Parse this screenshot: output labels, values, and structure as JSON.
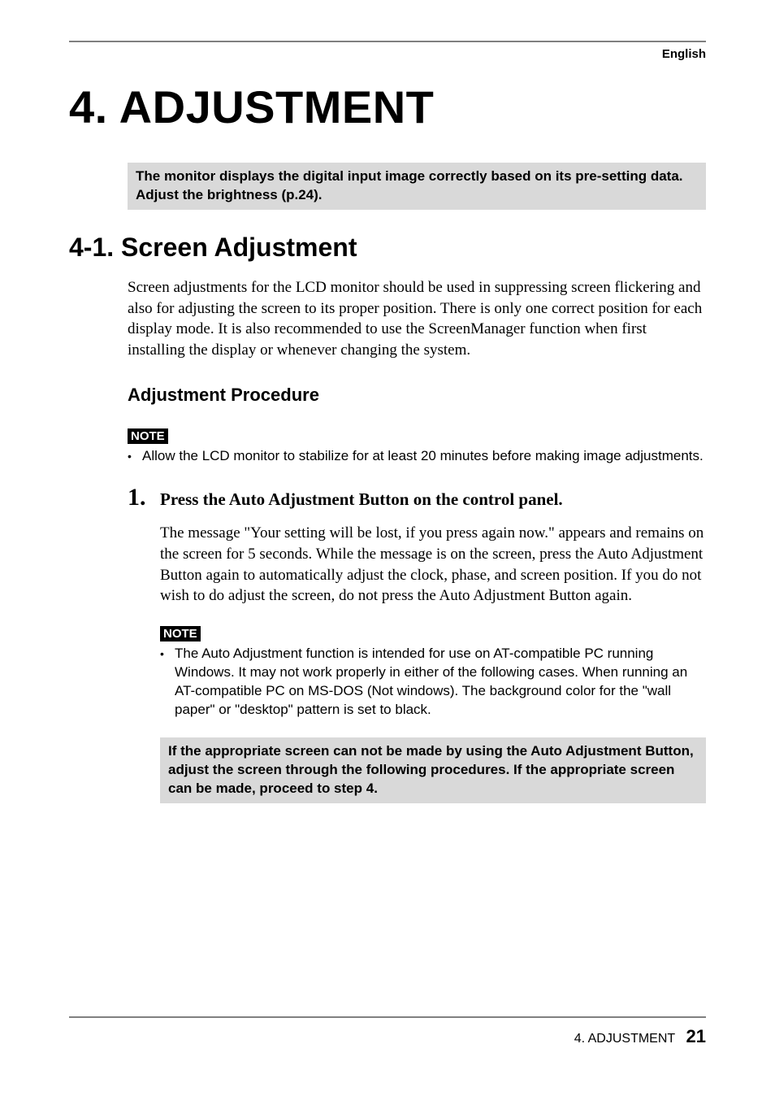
{
  "header": {
    "language": "English"
  },
  "title": "4. ADJUSTMENT",
  "intro_callout": "The monitor displays the digital input image correctly based on its pre-setting data.  Adjust the brightness (p.24).",
  "section": {
    "heading": "4-1. Screen Adjustment",
    "body": "Screen adjustments for the LCD monitor should be used in suppressing screen flickering and also for adjusting the screen to its proper position. There is only one correct position for each display mode. It is also recommended to use the ScreenManager function when first installing the display or whenever changing the system."
  },
  "procedure": {
    "heading": "Adjustment Procedure",
    "note1": {
      "label": "NOTE",
      "bullet": "Allow the LCD monitor to stabilize for at least 20 minutes before making image adjustments."
    },
    "step1": {
      "num": "1.",
      "title": "Press the Auto Adjustment Button on the control panel.",
      "body": "The message \"Your setting will be lost, if you press again now.\" appears and remains on the screen for 5 seconds.  While the message is on the screen, press the Auto Adjustment Button again to automatically adjust the clock, phase, and screen position.  If you do not wish to do adjust the screen, do not press the Auto Adjustment Button again.",
      "note": {
        "label": "NOTE",
        "bullet": "The Auto Adjustment function is intended for use on AT-compatible PC running Windows.  It may not work properly in either of the following cases. When running an AT-compatible PC on MS-DOS (Not windows).  The background color for the \"wall paper\" or \"desktop\" pattern is set to black."
      },
      "post_callout": "If the appropriate screen can not be made by using the Auto Adjustment Button, adjust the screen through the following procedures.  If the appropriate screen can be made, proceed to step 4."
    }
  },
  "footer": {
    "text": "4. ADJUSTMENT",
    "page": "21"
  }
}
